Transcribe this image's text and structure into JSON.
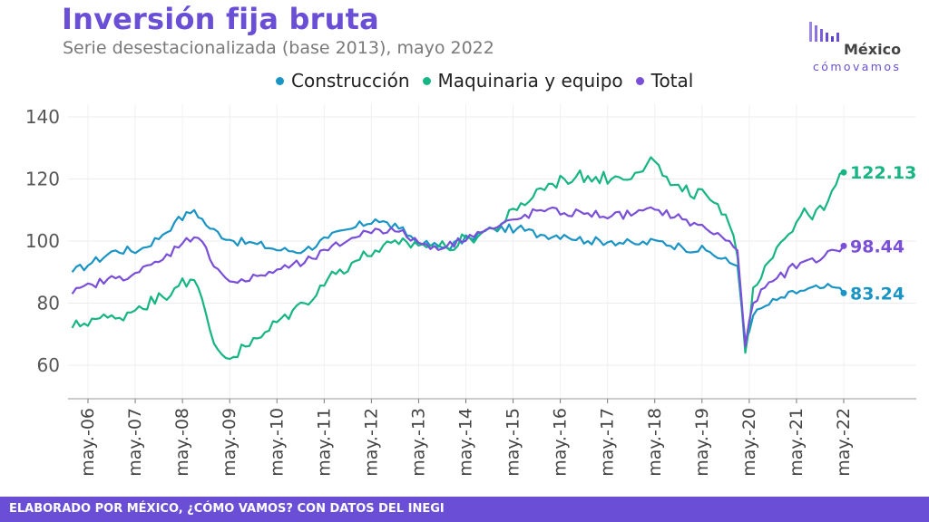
{
  "header": {
    "title": "Inversión fija bruta",
    "subtitle": "Serie desestacionalizada (base 2013), mayo 2022"
  },
  "logo": {
    "word": "México",
    "sub": "cómovamos"
  },
  "footer": {
    "text": "ELABORADO POR MÉXICO, ¿CÓMO VAMOS? CON DATOS DEL INEGI"
  },
  "colors": {
    "construccion": "#1a94c4",
    "maquinaria": "#17b583",
    "total": "#7a4fd8",
    "brand": "#6a4fd6"
  },
  "chart_data": {
    "type": "line",
    "title": "Inversión fija bruta",
    "subtitle": "Serie desestacionalizada (base 2013), mayo 2022",
    "xlabel": "",
    "ylabel": "",
    "ylim": [
      50,
      145
    ],
    "yticks": [
      60,
      80,
      100,
      120,
      140
    ],
    "grid": true,
    "legend_position": "top",
    "x_tick_labels": [
      "may.-06",
      "may.-07",
      "may.-08",
      "may.-09",
      "may.-10",
      "may.-11",
      "may.-12",
      "may.-13",
      "may.-14",
      "may.-15",
      "may.-16",
      "may.-17",
      "may.-18",
      "may.-19",
      "may.-20",
      "may.-21",
      "may.-22"
    ],
    "x_start": "2006-01",
    "x_end": "2022-05",
    "series": [
      {
        "name": "Construcción",
        "color": "#1a94c4",
        "end_label": "83.24",
        "anchors": [
          [
            "2006-01",
            90
          ],
          [
            "2006-06",
            93
          ],
          [
            "2006-12",
            97
          ],
          [
            "2007-06",
            97
          ],
          [
            "2007-12",
            102
          ],
          [
            "2008-03",
            106
          ],
          [
            "2008-08",
            110
          ],
          [
            "2008-12",
            104
          ],
          [
            "2009-06",
            100
          ],
          [
            "2009-12",
            99
          ],
          [
            "2010-06",
            97
          ],
          [
            "2010-12",
            97
          ],
          [
            "2011-06",
            101
          ],
          [
            "2011-12",
            104
          ],
          [
            "2012-06",
            107
          ],
          [
            "2012-12",
            104
          ],
          [
            "2013-06",
            99
          ],
          [
            "2013-12",
            98
          ],
          [
            "2014-06",
            101
          ],
          [
            "2014-12",
            104
          ],
          [
            "2015-06",
            104
          ],
          [
            "2015-12",
            102
          ],
          [
            "2016-06",
            102
          ],
          [
            "2016-12",
            100
          ],
          [
            "2017-06",
            100
          ],
          [
            "2017-12",
            99
          ],
          [
            "2018-06",
            100
          ],
          [
            "2018-12",
            98
          ],
          [
            "2019-06",
            97
          ],
          [
            "2019-12",
            93
          ],
          [
            "2020-02",
            92
          ],
          [
            "2020-04",
            68
          ],
          [
            "2020-06",
            76
          ],
          [
            "2020-09",
            79
          ],
          [
            "2020-12",
            81
          ],
          [
            "2021-06",
            84
          ],
          [
            "2021-12",
            85
          ],
          [
            "2022-03",
            85
          ],
          [
            "2022-05",
            83.24
          ]
        ]
      },
      {
        "name": "Maquinaria y equipo",
        "color": "#17b583",
        "end_label": "122.13",
        "anchors": [
          [
            "2006-01",
            72
          ],
          [
            "2006-06",
            75
          ],
          [
            "2006-12",
            75
          ],
          [
            "2007-06",
            79
          ],
          [
            "2007-12",
            82
          ],
          [
            "2008-05",
            88
          ],
          [
            "2008-09",
            85
          ],
          [
            "2009-01",
            67
          ],
          [
            "2009-05",
            62
          ],
          [
            "2009-09",
            66
          ],
          [
            "2010-01",
            69
          ],
          [
            "2010-06",
            75
          ],
          [
            "2010-12",
            80
          ],
          [
            "2011-06",
            88
          ],
          [
            "2011-12",
            93
          ],
          [
            "2012-06",
            97
          ],
          [
            "2012-12",
            99
          ],
          [
            "2013-06",
            99
          ],
          [
            "2013-12",
            98
          ],
          [
            "2014-06",
            101
          ],
          [
            "2014-12",
            104
          ],
          [
            "2015-06",
            110
          ],
          [
            "2015-12",
            117
          ],
          [
            "2016-06",
            120
          ],
          [
            "2016-12",
            121
          ],
          [
            "2017-06",
            120
          ],
          [
            "2017-12",
            122
          ],
          [
            "2018-04",
            127
          ],
          [
            "2018-09",
            118
          ],
          [
            "2018-12",
            116
          ],
          [
            "2019-06",
            115
          ],
          [
            "2019-12",
            105
          ],
          [
            "2020-02",
            95
          ],
          [
            "2020-04",
            64
          ],
          [
            "2020-06",
            85
          ],
          [
            "2020-09",
            92
          ],
          [
            "2020-12",
            98
          ],
          [
            "2021-06",
            108
          ],
          [
            "2021-12",
            110
          ],
          [
            "2022-03",
            118
          ],
          [
            "2022-05",
            122.13
          ]
        ]
      },
      {
        "name": "Total",
        "color": "#7a4fd8",
        "end_label": "98.44",
        "anchors": [
          [
            "2006-01",
            83
          ],
          [
            "2006-06",
            86
          ],
          [
            "2006-12",
            88
          ],
          [
            "2007-06",
            90
          ],
          [
            "2007-12",
            94
          ],
          [
            "2008-06",
            101
          ],
          [
            "2008-09",
            101
          ],
          [
            "2009-02",
            91
          ],
          [
            "2009-05",
            87
          ],
          [
            "2009-09",
            87
          ],
          [
            "2010-01",
            89
          ],
          [
            "2010-06",
            91
          ],
          [
            "2010-12",
            93
          ],
          [
            "2011-06",
            97
          ],
          [
            "2011-12",
            101
          ],
          [
            "2012-06",
            104
          ],
          [
            "2012-12",
            103
          ],
          [
            "2013-06",
            99
          ],
          [
            "2013-12",
            98
          ],
          [
            "2014-06",
            102
          ],
          [
            "2014-12",
            104
          ],
          [
            "2015-06",
            107
          ],
          [
            "2015-12",
            110
          ],
          [
            "2016-06",
            109
          ],
          [
            "2016-12",
            109
          ],
          [
            "2017-06",
            108
          ],
          [
            "2017-12",
            109
          ],
          [
            "2018-06",
            110
          ],
          [
            "2018-12",
            107
          ],
          [
            "2019-06",
            104
          ],
          [
            "2019-12",
            100
          ],
          [
            "2020-02",
            97
          ],
          [
            "2020-04",
            66
          ],
          [
            "2020-06",
            80
          ],
          [
            "2020-09",
            85
          ],
          [
            "2020-12",
            88
          ],
          [
            "2021-06",
            93
          ],
          [
            "2021-12",
            95
          ],
          [
            "2022-03",
            97
          ],
          [
            "2022-05",
            98.44
          ]
        ]
      }
    ]
  }
}
